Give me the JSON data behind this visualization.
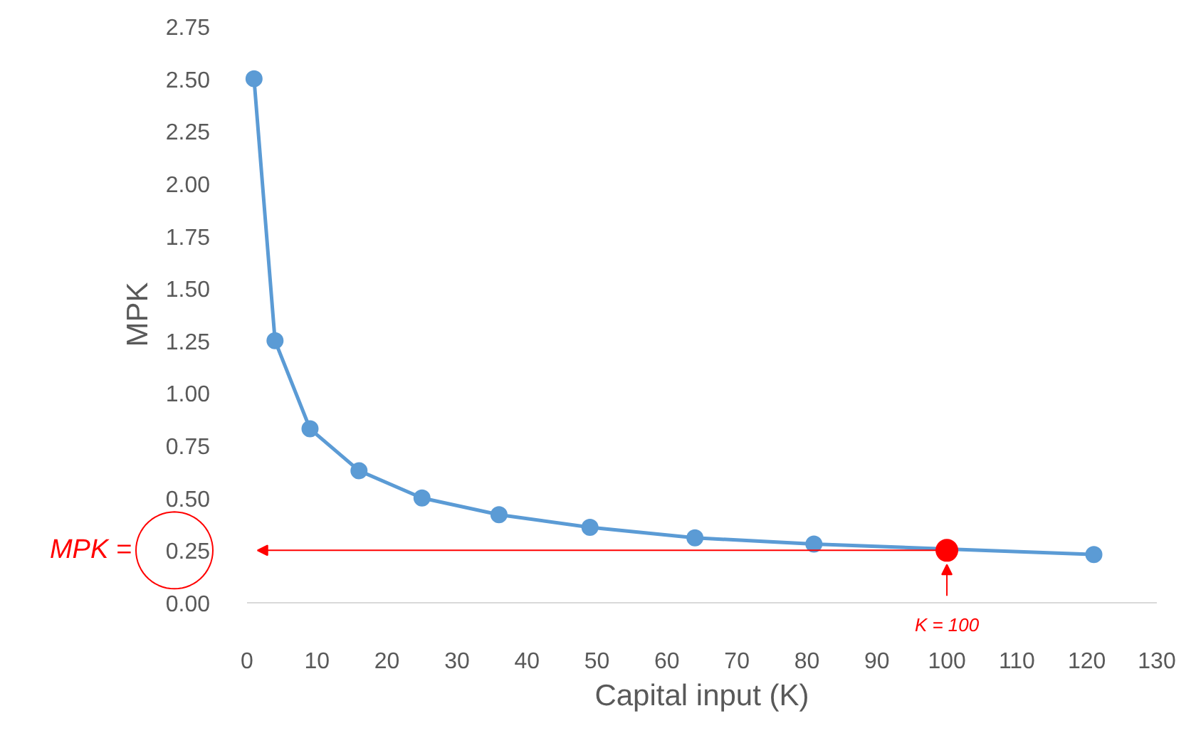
{
  "chart_data": {
    "type": "line",
    "xlabel": "Capital input (K)",
    "ylabel": "MPK",
    "xlim": [
      0,
      130
    ],
    "xticks": [
      0,
      10,
      20,
      30,
      40,
      50,
      60,
      70,
      80,
      90,
      100,
      110,
      120,
      130
    ],
    "ylim": [
      0,
      2.75
    ],
    "yticks": [
      {
        "value": 0,
        "label": "0.00"
      },
      {
        "value": 0.25,
        "label": "0.25"
      },
      {
        "value": 0.5,
        "label": "0.50"
      },
      {
        "value": 0.75,
        "label": "0.75"
      },
      {
        "value": 1,
        "label": "1.00"
      },
      {
        "value": 1.25,
        "label": "1.25"
      },
      {
        "value": 1.5,
        "label": "1.50"
      },
      {
        "value": 1.75,
        "label": "1.75"
      },
      {
        "value": 2,
        "label": "2.00"
      },
      {
        "value": 2.25,
        "label": "2.25"
      },
      {
        "value": 2.5,
        "label": "2.50"
      },
      {
        "value": 2.75,
        "label": "2.75"
      }
    ],
    "marker": "circle",
    "grid": false,
    "series": [
      {
        "color": "#5b9bd5",
        "x": [
          1,
          4,
          9,
          16,
          25,
          36,
          49,
          64,
          81,
          121
        ],
        "values": [
          2.5,
          1.25,
          0.83,
          0.63,
          0.5,
          0.42,
          0.36,
          0.31,
          0.28,
          0.23
        ]
      },
      {
        "type": "scatter",
        "color": "#ff0000",
        "x": [
          100
        ],
        "values": [
          0.25
        ]
      }
    ],
    "annotations": [
      "MPK =",
      {
        "text": "K = 100",
        "x": 100,
        "y": 0.25
      }
    ]
  }
}
